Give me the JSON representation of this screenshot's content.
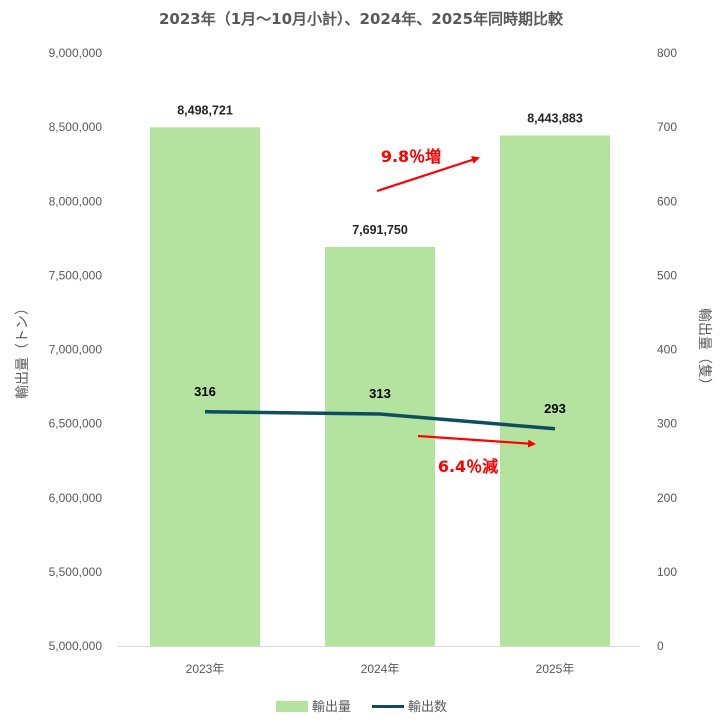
{
  "colors": {
    "bar": "#b4e3a0",
    "line": "#0e4e5e",
    "arrow": "#ff0000",
    "axis": "#d9d9d9",
    "text": "#595959"
  },
  "chart_data": {
    "type": "bar",
    "title": "2023年（1月〜10月小計）、2024年、2025年同時期比較",
    "categories": [
      "2023年",
      "2024年",
      "2025年"
    ],
    "series": [
      {
        "name": "輸出量",
        "type": "bar",
        "axis": "left",
        "values": [
          8498721,
          7691750,
          8443883
        ],
        "labels": [
          "8,498,721",
          "7,691,750",
          "8,443,883"
        ]
      },
      {
        "name": "輸出数",
        "type": "line",
        "axis": "right",
        "values": [
          316,
          313,
          293
        ],
        "labels": [
          "316",
          "313",
          "293"
        ]
      }
    ],
    "ylabel": "輸出量（トン）",
    "y2label": "輸出量（隻）",
    "ylim": [
      5000000,
      9000000
    ],
    "y2lim": [
      0,
      800
    ],
    "yticks": [
      "5,000,000",
      "5,500,000",
      "6,000,000",
      "6,500,000",
      "7,000,000",
      "7,500,000",
      "8,000,000",
      "8,500,000",
      "9,000,000"
    ],
    "y2ticks": [
      "0",
      "100",
      "200",
      "300",
      "400",
      "500",
      "600",
      "700",
      "800"
    ],
    "annotations": [
      "9.8％増",
      "6.4％減"
    ],
    "grid": false,
    "legend": "bottom"
  }
}
